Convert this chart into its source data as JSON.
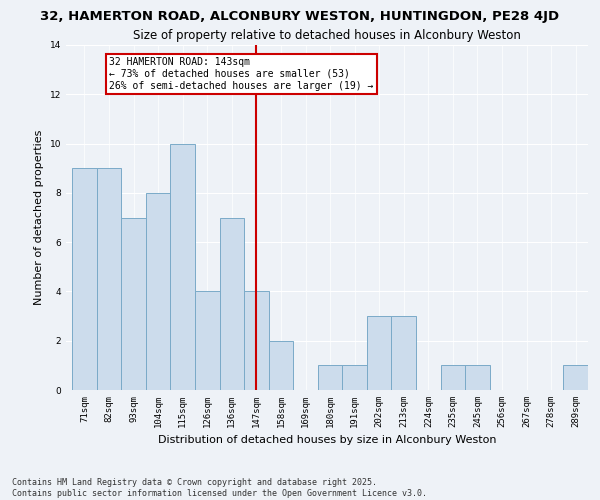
{
  "title1": "32, HAMERTON ROAD, ALCONBURY WESTON, HUNTINGDON, PE28 4JD",
  "title2": "Size of property relative to detached houses in Alconbury Weston",
  "xlabel": "Distribution of detached houses by size in Alconbury Weston",
  "ylabel": "Number of detached properties",
  "categories": [
    "71sqm",
    "82sqm",
    "93sqm",
    "104sqm",
    "115sqm",
    "126sqm",
    "136sqm",
    "147sqm",
    "158sqm",
    "169sqm",
    "180sqm",
    "191sqm",
    "202sqm",
    "213sqm",
    "224sqm",
    "235sqm",
    "245sqm",
    "256sqm",
    "267sqm",
    "278sqm",
    "289sqm"
  ],
  "values": [
    9,
    9,
    7,
    8,
    10,
    4,
    7,
    4,
    2,
    0,
    1,
    1,
    3,
    3,
    0,
    1,
    1,
    0,
    0,
    0,
    1
  ],
  "bar_color": "#ccdcec",
  "bar_edge_color": "#7aaac8",
  "ref_line_index": 7,
  "annotation_text": "32 HAMERTON ROAD: 143sqm\n← 73% of detached houses are smaller (53)\n26% of semi-detached houses are larger (19) →",
  "annotation_box_color": "#ffffff",
  "annotation_box_edge": "#cc0000",
  "ref_line_color": "#cc0000",
  "ylim": [
    0,
    14
  ],
  "yticks": [
    0,
    2,
    4,
    6,
    8,
    10,
    12,
    14
  ],
  "footnote": "Contains HM Land Registry data © Crown copyright and database right 2025.\nContains public sector information licensed under the Open Government Licence v3.0.",
  "background_color": "#eef2f7",
  "plot_background": "#eef2f7",
  "grid_color": "#ffffff",
  "title1_fontsize": 9.5,
  "title2_fontsize": 8.5,
  "xlabel_fontsize": 8,
  "ylabel_fontsize": 8,
  "tick_fontsize": 6.5,
  "annot_fontsize": 7,
  "footnote_fontsize": 6
}
